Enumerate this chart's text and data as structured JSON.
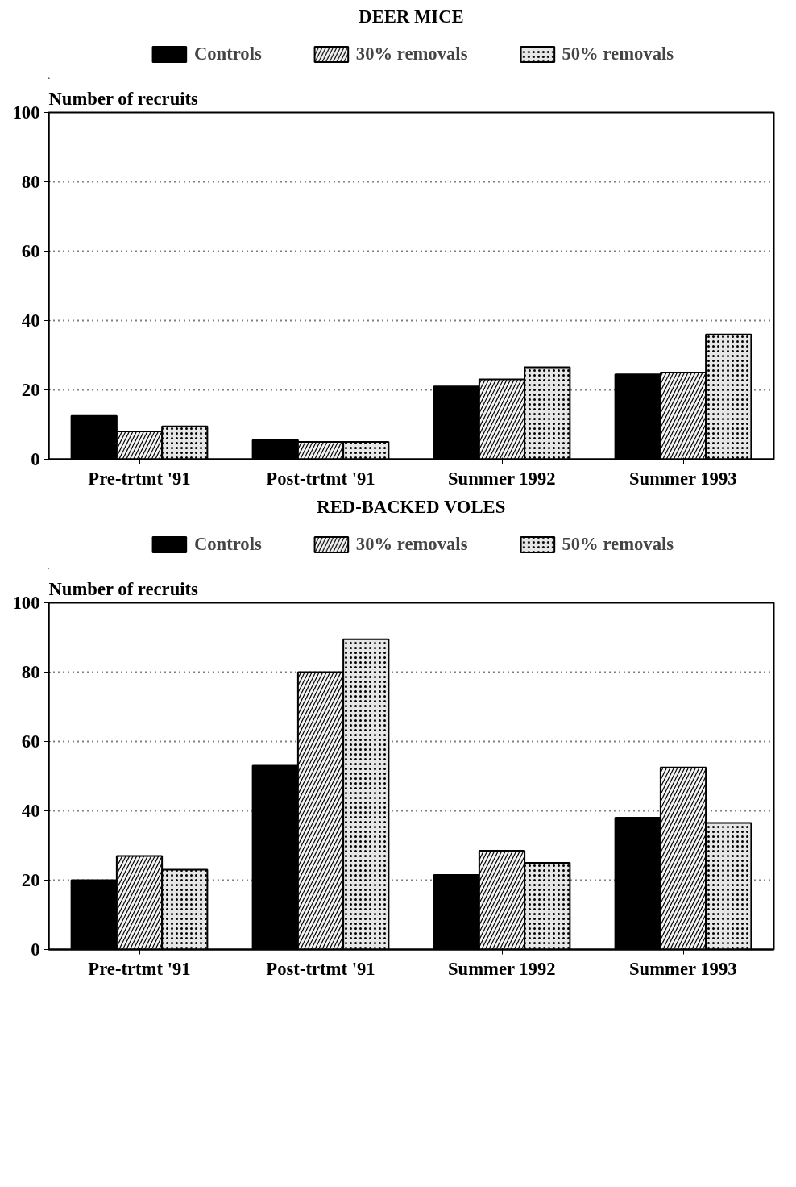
{
  "chart_data": [
    {
      "type": "bar",
      "title": "DEER MICE",
      "ylabel": "Number of recruits",
      "categories": [
        "Pre-trtmt '91",
        "Post-trtmt '91",
        "Summer 1992",
        "Summer 1993"
      ],
      "ylim": [
        0,
        100
      ],
      "yticks": [
        0,
        20,
        40,
        60,
        80,
        100
      ],
      "grid": "y",
      "legend": "top",
      "series": [
        {
          "name": "Controls",
          "color": "#000000",
          "values": [
            12.5,
            5.5,
            21,
            24.5
          ]
        },
        {
          "name": "30% removals",
          "color": "#f2f2f2",
          "values": [
            8,
            5,
            23,
            25
          ]
        },
        {
          "name": "50% removals",
          "color": "#e6e6e6",
          "values": [
            9.5,
            5,
            26.5,
            36
          ]
        }
      ]
    },
    {
      "type": "bar",
      "title": "RED-BACKED VOLES",
      "ylabel": "Number of recruits",
      "categories": [
        "Pre-trtmt '91",
        "Post-trtmt '91",
        "Summer 1992",
        "Summer 1993"
      ],
      "ylim": [
        0,
        100
      ],
      "yticks": [
        0,
        20,
        40,
        60,
        80,
        100
      ],
      "grid": "y",
      "legend": "top",
      "series": [
        {
          "name": "Controls",
          "color": "#000000",
          "values": [
            20,
            53,
            21.5,
            38
          ]
        },
        {
          "name": "30% removals",
          "color": "#f2f2f2",
          "values": [
            27,
            80,
            28.5,
            52.5
          ]
        },
        {
          "name": "50% removals",
          "color": "#e6e6e6",
          "values": [
            23,
            89.5,
            25,
            36.5
          ]
        }
      ]
    }
  ]
}
